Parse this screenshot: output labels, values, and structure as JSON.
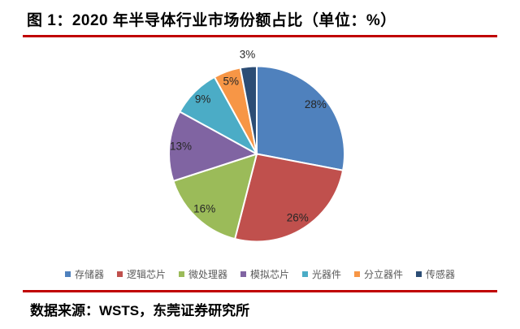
{
  "page": {
    "title": "图 1：2020 年半导体行业市场份额占比（单位：%）",
    "source": "数据来源：WSTS，东莞证券研究所",
    "accent_color": "#C00000",
    "background": "#FFFFFF"
  },
  "chart_data": {
    "type": "pie",
    "title": "2020 年半导体行业市场份额占比",
    "unit": "%",
    "categories": [
      "存储器",
      "逻辑芯片",
      "微处理器",
      "模拟芯片",
      "光器件",
      "分立器件",
      "传感器"
    ],
    "values": [
      28,
      26,
      16,
      13,
      9,
      5,
      3
    ],
    "colors": [
      "#4F81BD",
      "#C0504D",
      "#9BBB59",
      "#8064A2",
      "#4BACC6",
      "#F79646",
      "#2C4D75"
    ],
    "data_labels": [
      "28%",
      "26%",
      "16%",
      "13%",
      "9%",
      "5%",
      "3%"
    ],
    "label_placement": [
      "inside",
      "inside",
      "inside",
      "inside",
      "inside",
      "inside",
      "outside"
    ],
    "start_angle_deg": 0,
    "direction": "clockwise",
    "legend_position": "bottom",
    "label_color": "#262626",
    "legend_text_color": "#595959",
    "slice_border_color": "#FFFFFF"
  }
}
